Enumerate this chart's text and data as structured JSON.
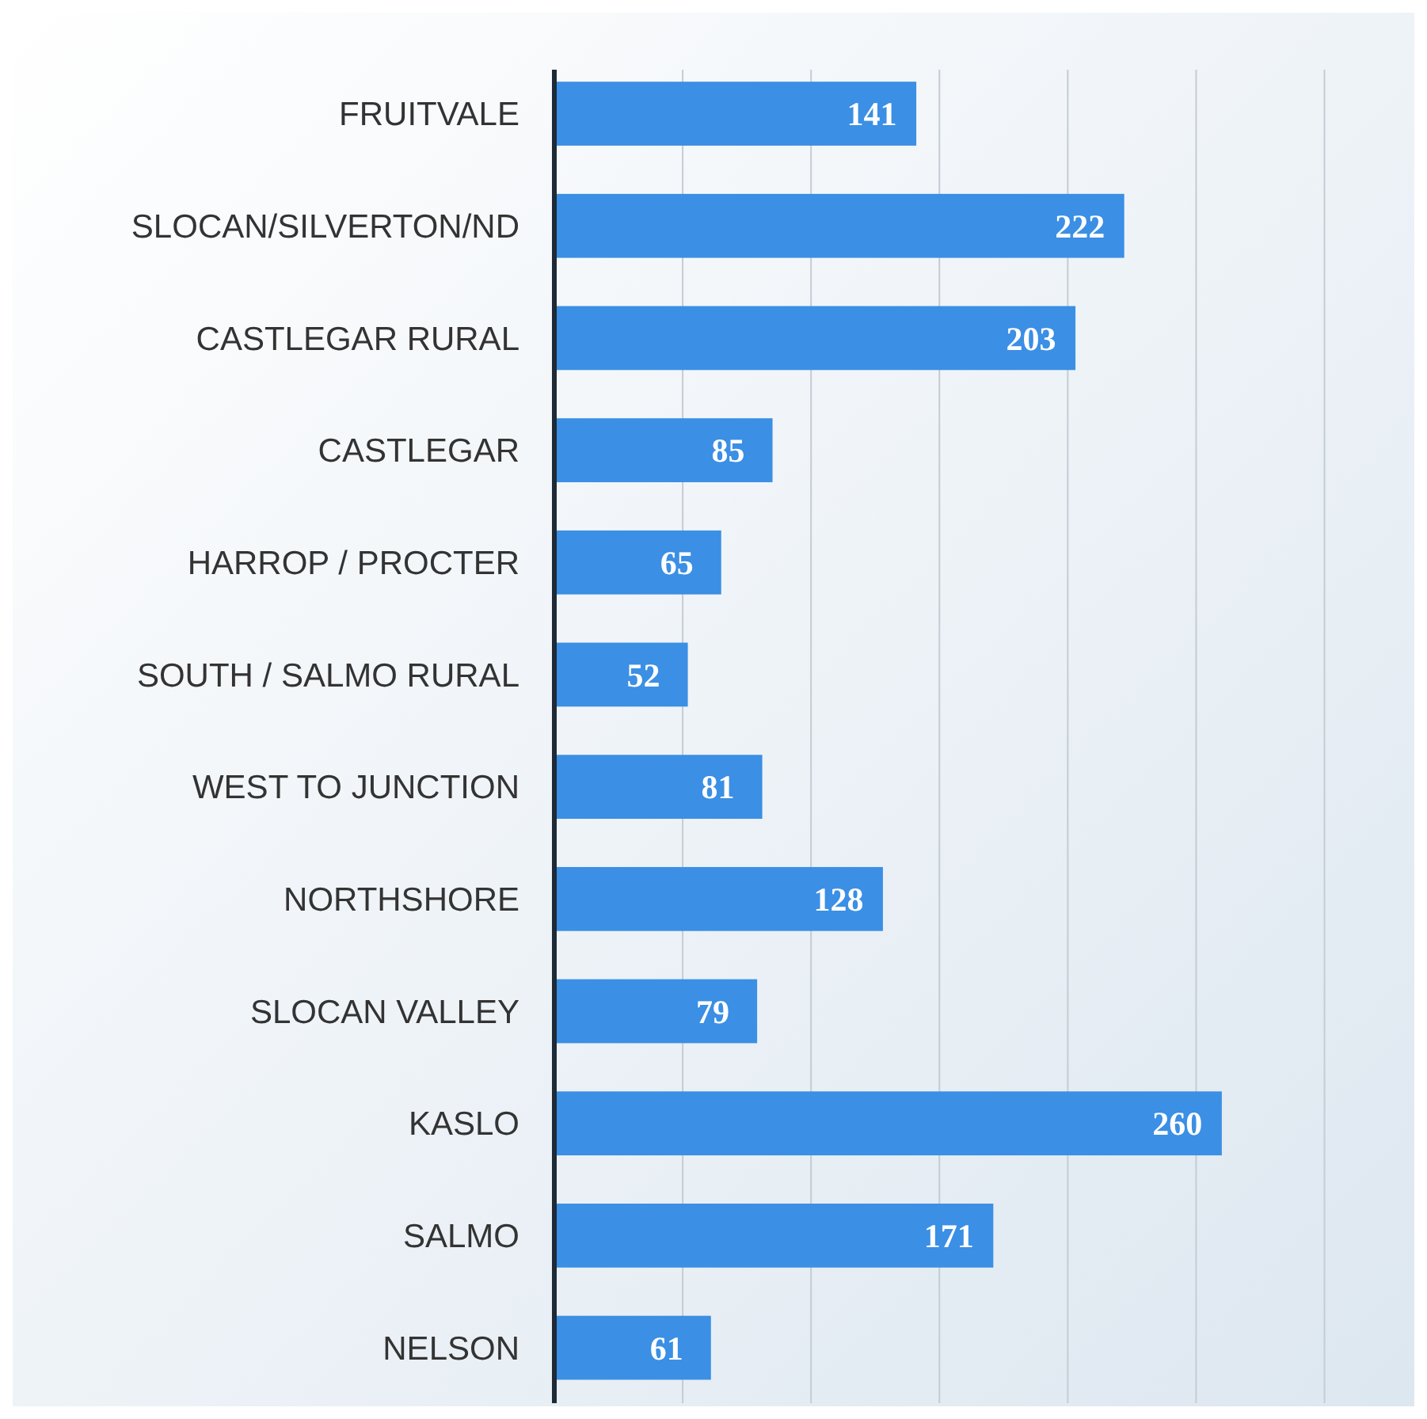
{
  "chart_data": {
    "type": "bar",
    "orientation": "horizontal",
    "categories": [
      "FRUITVALE",
      "SLOCAN/SILVERTON/ND",
      "CASTLEGAR RURAL",
      "CASTLEGAR",
      "HARROP / PROCTER",
      "SOUTH / SALMO RURAL",
      "WEST TO JUNCTION",
      "NORTHSHORE",
      "SLOCAN VALLEY",
      "KASLO",
      "SALMO",
      "NELSON"
    ],
    "values": [
      141,
      222,
      203,
      85,
      65,
      52,
      81,
      128,
      79,
      260,
      171,
      61
    ],
    "color": "#3b8fe4",
    "xlim": [
      0,
      335
    ],
    "xticks": [
      {
        "value": 0,
        "label": null
      },
      {
        "value": 50,
        "label": null
      },
      {
        "value": 100,
        "label": null
      },
      {
        "value": 150,
        "label": null
      },
      {
        "value": 200,
        "label": null
      },
      {
        "value": 250,
        "label": null
      },
      {
        "value": 300,
        "label": null
      }
    ],
    "grid": "x",
    "tick_labels": "y",
    "data_labels": true
  }
}
